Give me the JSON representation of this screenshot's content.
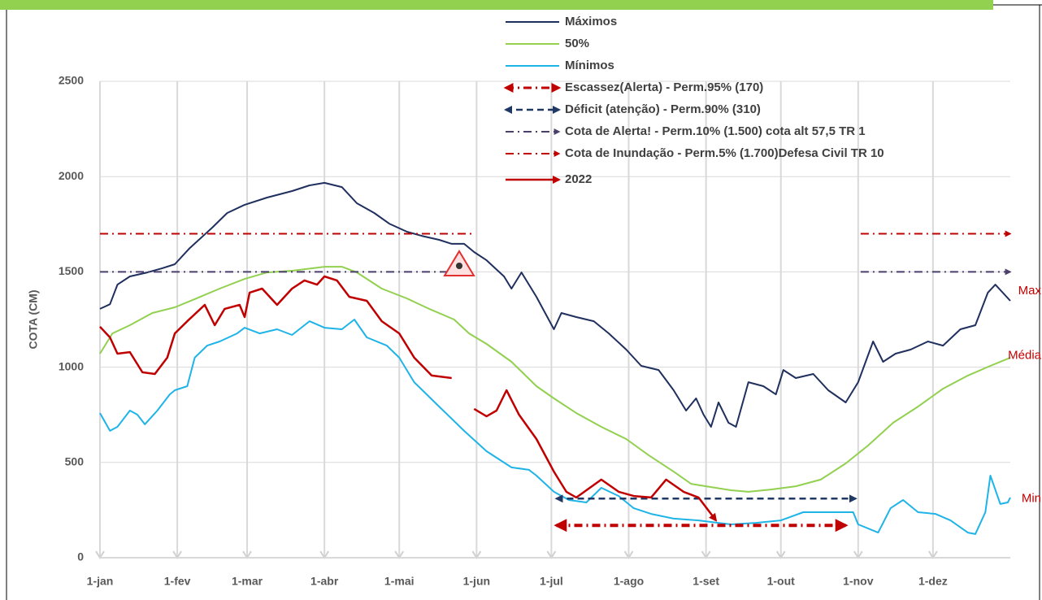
{
  "chart_data": {
    "type": "line",
    "y_label": "COTA (CM)",
    "xlim": [
      1,
      366
    ],
    "xticks": [
      {
        "value": 1,
        "label": "1-jan"
      },
      {
        "value": 32,
        "label": "1-fev"
      },
      {
        "value": 60,
        "label": "1-mar"
      },
      {
        "value": 91,
        "label": "1-abr"
      },
      {
        "value": 121,
        "label": "1-mai"
      },
      {
        "value": 152,
        "label": "1-jun"
      },
      {
        "value": 182,
        "label": "1-jul"
      },
      {
        "value": 213,
        "label": "1-ago"
      },
      {
        "value": 244,
        "label": "1-set"
      },
      {
        "value": 274,
        "label": "1-out"
      },
      {
        "value": 305,
        "label": "1-nov"
      },
      {
        "value": 335,
        "label": "1-dez"
      }
    ],
    "ylim": [
      0,
      2500
    ],
    "yticks": [
      0,
      500,
      1000,
      1500,
      2000,
      2500
    ],
    "grid": true,
    "series": [
      {
        "name": "Máximos",
        "color": "#1f2f5e",
        "width": 2,
        "dash": "solid",
        "arrow": "none",
        "x": [
          1,
          5,
          8,
          13,
          20,
          26,
          31,
          37,
          46,
          52,
          59,
          68,
          78,
          85,
          91,
          98,
          104,
          111,
          117,
          124,
          130,
          137,
          142,
          147,
          151,
          156,
          163,
          166,
          170,
          176,
          183,
          186,
          192,
          199,
          205,
          212,
          218,
          225,
          231,
          236,
          240,
          243,
          246,
          249,
          253,
          256,
          261,
          267,
          272,
          275,
          280,
          287,
          293,
          300,
          305,
          311,
          315,
          320,
          326,
          333,
          339,
          346,
          352,
          357,
          360,
          366
        ],
        "values": [
          1306,
          1330,
          1433,
          1476,
          1497,
          1519,
          1540,
          1625,
          1732,
          1809,
          1852,
          1890,
          1924,
          1954,
          1967,
          1945,
          1860,
          1809,
          1753,
          1711,
          1689,
          1668,
          1647,
          1647,
          1604,
          1561,
          1476,
          1412,
          1497,
          1369,
          1199,
          1284,
          1263,
          1241,
          1177,
          1092,
          1007,
          985,
          879,
          772,
          836,
          751,
          687,
          815,
          708,
          687,
          921,
          900,
          857,
          985,
          943,
          964,
          879,
          815,
          921,
          1135,
          1028,
          1071,
          1092,
          1135,
          1113,
          1199,
          1220,
          1391,
          1433,
          1348
        ]
      },
      {
        "name": "50%",
        "color": "#92d050",
        "width": 2,
        "dash": "solid",
        "arrow": "none",
        "x": [
          1,
          6,
          13,
          22,
          31,
          39,
          49,
          59,
          68,
          78,
          91,
          98,
          104,
          114,
          124,
          133,
          143,
          149,
          156,
          166,
          176,
          183,
          192,
          202,
          212,
          221,
          231,
          238,
          244,
          254,
          261,
          270,
          280,
          290,
          300,
          309,
          319,
          329,
          339,
          349,
          358,
          366
        ],
        "values": [
          1071,
          1177,
          1220,
          1284,
          1314,
          1357,
          1412,
          1463,
          1497,
          1506,
          1527,
          1527,
          1497,
          1412,
          1361,
          1306,
          1250,
          1177,
          1122,
          1028,
          900,
          836,
          759,
          687,
          623,
          538,
          452,
          388,
          375,
          354,
          346,
          358,
          375,
          410,
          495,
          589,
          708,
          793,
          887,
          956,
          1007,
          1050
        ]
      },
      {
        "name": "Mínimos",
        "color": "#1fb4e8",
        "width": 2,
        "dash": "solid",
        "arrow": "none",
        "x": [
          1,
          5,
          8,
          13,
          16,
          19,
          24,
          29,
          31,
          36,
          39,
          44,
          49,
          56,
          59,
          65,
          72,
          78,
          85,
          91,
          98,
          103,
          108,
          116,
          121,
          127,
          137,
          147,
          156,
          166,
          173,
          176,
          183,
          189,
          196,
          202,
          209,
          215,
          222,
          231,
          241,
          254,
          264,
          274,
          283,
          293,
          303,
          305,
          313,
          318,
          323,
          329,
          336,
          342,
          349,
          352,
          356,
          358,
          362,
          365,
          366
        ],
        "values": [
          759,
          666,
          687,
          772,
          751,
          700,
          772,
          857,
          879,
          900,
          1050,
          1113,
          1135,
          1177,
          1207,
          1177,
          1199,
          1169,
          1241,
          1207,
          1199,
          1250,
          1156,
          1113,
          1050,
          921,
          793,
          666,
          559,
          474,
          461,
          431,
          346,
          303,
          290,
          367,
          324,
          260,
          230,
          205,
          196,
          175,
          183,
          196,
          239,
          239,
          239,
          175,
          132,
          260,
          303,
          239,
          230,
          196,
          132,
          124,
          239,
          431,
          282,
          290,
          316
        ]
      },
      {
        "name": "Escassez(Alerta) - Perm.95% (170)",
        "color": "#c00000",
        "width": 4,
        "dash": "dashdot",
        "arrow": "both",
        "x": [
          184,
          300
        ],
        "values": [
          170,
          170
        ]
      },
      {
        "name": "Déficit (atenção) - Perm.90% (310)",
        "color": "#1f3864",
        "width": 2.5,
        "dash": "dash",
        "arrow": "both",
        "x": [
          184,
          304
        ],
        "values": [
          310,
          310
        ]
      },
      {
        "name": "Cota de Alerta! - Perm.10% (1.500) cota alt 57,5  TR 1",
        "color": "#4b3f6b",
        "width": 2,
        "dash": "dashdot",
        "arrow": "end",
        "x": [
          1,
          142,
          143,
          306,
          366
        ],
        "values": [
          1500,
          1500,
          null,
          1500,
          1500
        ]
      },
      {
        "name": "Cota de Inundação  - Perm.5% (1.700)Defesa Civil TR 10",
        "color": "#c00000",
        "width": 2,
        "dash": "dashdot",
        "arrow": "end",
        "x": [
          1,
          151,
          152,
          306,
          366
        ],
        "values": [
          1700,
          1700,
          null,
          1700,
          1700
        ]
      },
      {
        "name": "2022",
        "color": "#c00000",
        "width": 2.5,
        "dash": "solid",
        "arrow": "end",
        "x": [
          1,
          5,
          8,
          13,
          18,
          23,
          28,
          31,
          36,
          43,
          47,
          51,
          57,
          59,
          61,
          66,
          72,
          78,
          83,
          88,
          91,
          96,
          101,
          108,
          114,
          121,
          127,
          134,
          142,
          147,
          151,
          156,
          160,
          164,
          169,
          176,
          183,
          188,
          192,
          202,
          209,
          215,
          222,
          228,
          235,
          241,
          248
        ],
        "values": [
          1212,
          1156,
          1071,
          1079,
          973,
          964,
          1050,
          1177,
          1241,
          1327,
          1220,
          1306,
          1327,
          1263,
          1391,
          1412,
          1327,
          1412,
          1455,
          1433,
          1476,
          1455,
          1369,
          1348,
          1241,
          1177,
          1050,
          956,
          943,
          null,
          781,
          742,
          772,
          879,
          751,
          623,
          452,
          346,
          316,
          410,
          346,
          324,
          316,
          410,
          346,
          316,
          196
        ]
      }
    ],
    "annotations": [
      {
        "text": "Max",
        "x": 366,
        "y": 1400
      },
      {
        "text": "Média",
        "x": 366,
        "y": 1060
      },
      {
        "text": "Min",
        "x": 366,
        "y": 310
      }
    ]
  }
}
